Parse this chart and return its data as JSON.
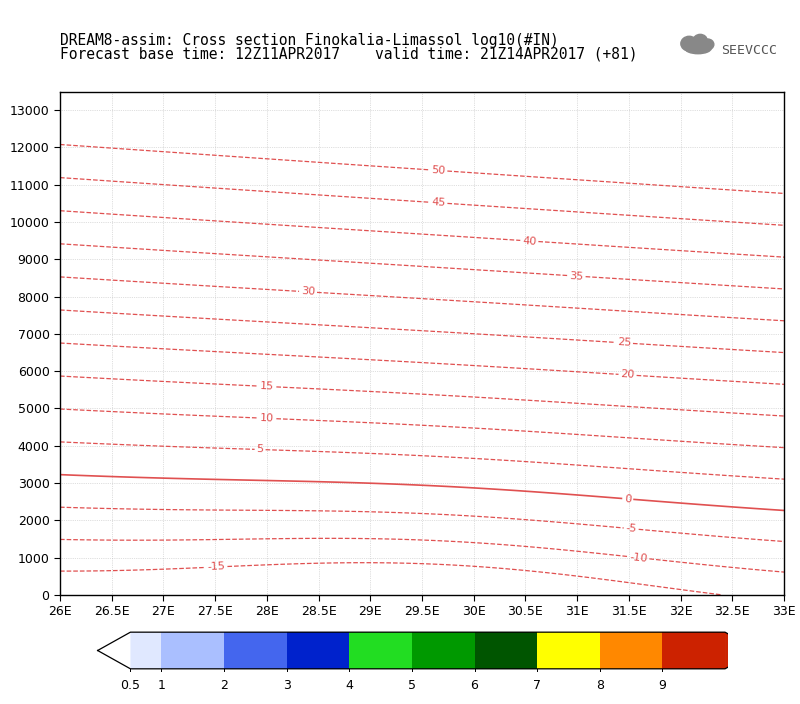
{
  "title_line1": "DREAM8-assim: Cross section Finokalia-Limassol log10(#IN)",
  "title_line2": "Forecast base time: 12Z11APR2017    valid time: 21Z14APR2017 (+81)",
  "x_min": 26.0,
  "x_max": 33.0,
  "y_min": 0,
  "y_max": 13500,
  "x_ticks": [
    26,
    26.5,
    27,
    27.5,
    28,
    28.5,
    29,
    29.5,
    30,
    30.5,
    31,
    31.5,
    32,
    32.5,
    33
  ],
  "x_tick_labels": [
    "26E",
    "26.5E",
    "27E",
    "27.5E",
    "28E",
    "28.5E",
    "29E",
    "29.5E",
    "30E",
    "30.5E",
    "31E",
    "31.5E",
    "32E",
    "32.5E",
    "33E"
  ],
  "y_ticks": [
    0,
    1000,
    2000,
    3000,
    4000,
    5000,
    6000,
    7000,
    8000,
    9000,
    10000,
    11000,
    12000,
    13000
  ],
  "contour_color": "#E05050",
  "grid_color": "#C0C0C0",
  "background_color": "#FFFFFF",
  "title_fontsize": 10.5,
  "axis_fontsize": 9,
  "contour_fontsize": 8,
  "contour_levels": [
    -15,
    -10,
    -5,
    0,
    5,
    10,
    15,
    20,
    25,
    30,
    35,
    40,
    45,
    50
  ],
  "cbar_colors": [
    "#E0E8FF",
    "#AABFFF",
    "#4466EE",
    "#0022CC",
    "#22DD22",
    "#009900",
    "#005500",
    "#FFFF00",
    "#FF8800",
    "#CC2200"
  ],
  "cbar_tick_vals": [
    0.5,
    1,
    2,
    3,
    4,
    5,
    6,
    7,
    8,
    9
  ],
  "cbar_tick_labels": [
    "0.5",
    "1",
    "2",
    "3",
    "4",
    "5",
    "6",
    "7",
    "8",
    "9"
  ]
}
